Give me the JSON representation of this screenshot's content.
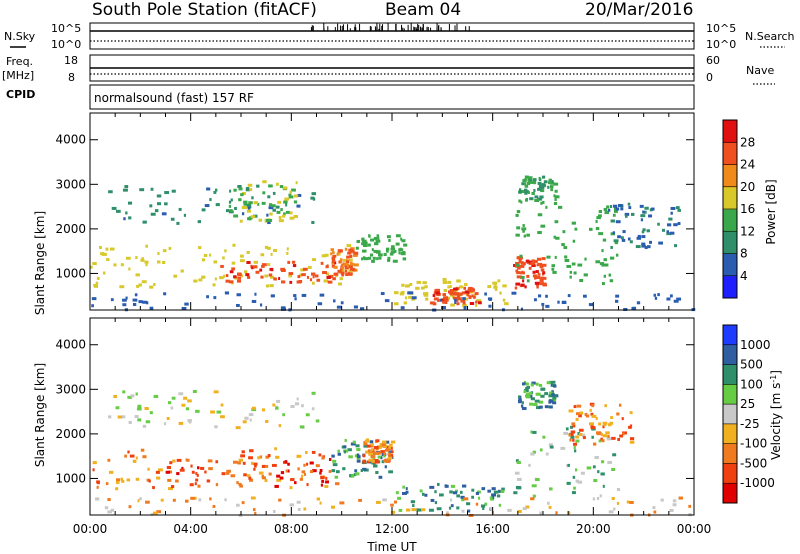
{
  "header": {
    "station": "South Pole Station (fitACF)",
    "beam": "Beam 04",
    "date": "20/Mar/2016"
  },
  "panels": {
    "nsky": {
      "label": "N.Sky",
      "left_ticks": [
        "10^5",
        "10^0"
      ],
      "right_ticks": [
        "10^5",
        "10^0"
      ],
      "right_label": "N.Search"
    },
    "freq": {
      "label_top": "Freq.",
      "label_bottom": "[MHz]",
      "left_ticks": [
        "18",
        "8"
      ],
      "right_ticks": [
        "60",
        "0"
      ],
      "right_label": "Nave",
      "cpid_label": "CPID"
    },
    "cpid": {
      "text": "normalsound (fast) 157 RF"
    }
  },
  "chart_data": [
    {
      "type": "heatmap",
      "name": "power",
      "ylabel": "Slant Range [km]",
      "xlabel": "",
      "x_ticks": [
        "00:00",
        "04:00",
        "08:00",
        "12:00",
        "16:00",
        "20:00",
        "00:00"
      ],
      "x_range_hours": [
        0,
        24
      ],
      "y_ticks": [
        1000,
        2000,
        3000,
        4000
      ],
      "ylim": [
        180,
        4600
      ],
      "colorbar": {
        "label": "Power [dB]",
        "ticks": [
          4,
          8,
          12,
          16,
          20,
          24,
          28
        ],
        "range": [
          0,
          32
        ],
        "colors": [
          "#1e1eff",
          "#2a5db0",
          "#2f8f6a",
          "#3aa84a",
          "#d8c82a",
          "#f08a1a",
          "#f05020",
          "#e01010"
        ]
      },
      "scatter_regions": [
        {
          "t0": 0.5,
          "t1": 9.0,
          "r0": 2150,
          "r1": 3000,
          "value": 9
        },
        {
          "t0": 5.5,
          "t1": 8.2,
          "r0": 2200,
          "r1": 3100,
          "value": 16
        },
        {
          "t0": 0.0,
          "t1": 10.5,
          "r0": 700,
          "r1": 1700,
          "value": 18
        },
        {
          "t0": 5.0,
          "t1": 9.8,
          "r0": 800,
          "r1": 1300,
          "value": 27
        },
        {
          "t0": 9.5,
          "t1": 10.5,
          "r0": 1000,
          "r1": 1600,
          "value": 24
        },
        {
          "t0": 10.5,
          "t1": 12.5,
          "r0": 1300,
          "r1": 1900,
          "value": 14
        },
        {
          "t0": 12.0,
          "t1": 16.5,
          "r0": 300,
          "r1": 900,
          "value": 18
        },
        {
          "t0": 13.5,
          "t1": 15.5,
          "r0": 350,
          "r1": 700,
          "value": 27
        },
        {
          "t0": 16.8,
          "t1": 18.0,
          "r0": 700,
          "r1": 1400,
          "value": 27
        },
        {
          "t0": 16.8,
          "t1": 21.0,
          "r0": 700,
          "r1": 2600,
          "value": 14
        },
        {
          "t0": 17.0,
          "t1": 18.5,
          "r0": 2600,
          "r1": 3200,
          "value": 12
        },
        {
          "t0": 20.5,
          "t1": 23.5,
          "r0": 1600,
          "r1": 2600,
          "value": 8
        },
        {
          "t0": 0.0,
          "t1": 24.0,
          "r0": 200,
          "r1": 600,
          "value": 6
        }
      ]
    },
    {
      "type": "heatmap",
      "name": "velocity",
      "ylabel": "Slant Range [km]",
      "xlabel": "Time UT",
      "x_ticks": [
        "00:00",
        "04:00",
        "08:00",
        "12:00",
        "16:00",
        "20:00",
        "00:00"
      ],
      "x_range_hours": [
        0,
        24
      ],
      "y_ticks": [
        1000,
        2000,
        3000,
        4000
      ],
      "ylim": [
        180,
        4600
      ],
      "colorbar": {
        "label": "Velocity [m s^-1]",
        "ticks": [
          "1000",
          "500",
          "100",
          "25",
          "-25",
          "-100",
          "-500",
          "-1000"
        ],
        "colors": [
          "#1e3cff",
          "#2f5fa0",
          "#2f8f6a",
          "#66cc44",
          "#c8c8c8",
          "#f0b020",
          "#f07a20",
          "#f04010",
          "#e00000"
        ]
      },
      "scatter_regions": [
        {
          "t0": 0.5,
          "t1": 9.0,
          "r0": 2150,
          "r1": 3000,
          "value": 4
        },
        {
          "t0": 0.0,
          "t1": 10.0,
          "r0": 800,
          "r1": 1700,
          "value": 6
        },
        {
          "t0": 3.0,
          "t1": 9.5,
          "r0": 850,
          "r1": 1500,
          "value": 7
        },
        {
          "t0": 9.5,
          "t1": 12.0,
          "r0": 1000,
          "r1": 1900,
          "value": 2
        },
        {
          "t0": 10.8,
          "t1": 12.0,
          "r0": 1400,
          "r1": 1900,
          "value": 6
        },
        {
          "t0": 12.0,
          "t1": 16.5,
          "r0": 300,
          "r1": 900,
          "value": 2
        },
        {
          "t0": 16.8,
          "t1": 21.0,
          "r0": 600,
          "r1": 2200,
          "value": 3
        },
        {
          "t0": 19.0,
          "t1": 21.5,
          "r0": 1800,
          "r1": 2700,
          "value": 6
        },
        {
          "t0": 17.0,
          "t1": 18.5,
          "r0": 2600,
          "r1": 3200,
          "value": 2
        },
        {
          "t0": 0.0,
          "t1": 24.0,
          "r0": 200,
          "r1": 600,
          "value": 5
        }
      ]
    }
  ]
}
